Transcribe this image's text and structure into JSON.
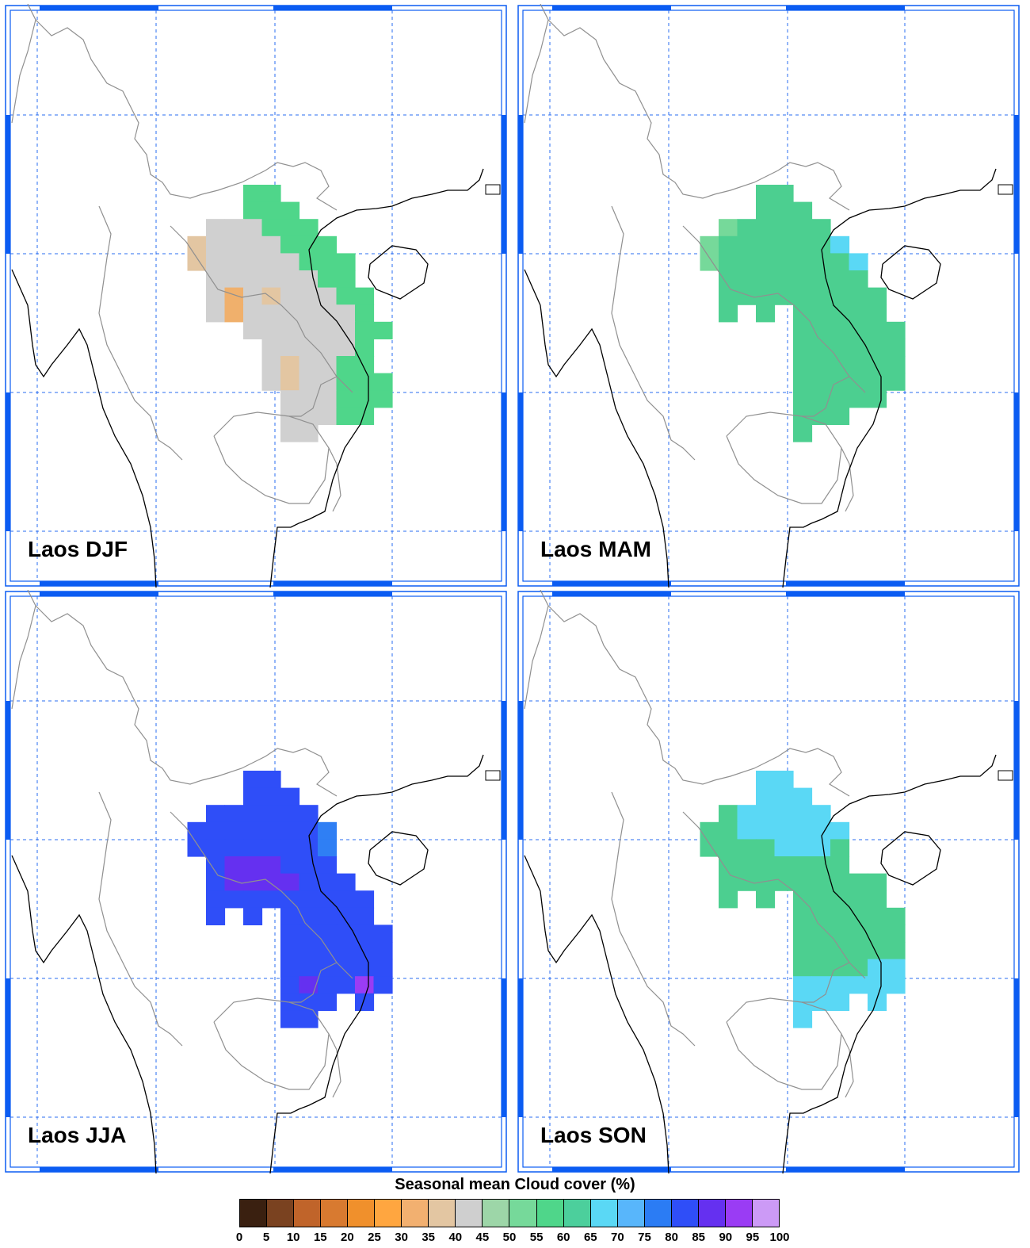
{
  "panels": [
    {
      "label": "Laos DJF",
      "grid": [
        "....GG.....",
        "....GGG....",
        "..XXXGGG...",
        ".TXXXXGGG..",
        ".TXXXXXGGG.",
        "..XXXXXXGG.",
        "..XOXTXXXGG",
        "..XOXXXXXXG",
        "....XXXXXXGG",
        ".....XXXXXG.",
        ".....XTXXGG.",
        ".....XTXXGGG",
        "......XXXGGG",
        "......XXXGG.",
        "......XX...."
      ]
    },
    {
      "label": "Laos MAM",
      "grid": [
        "....MM.....",
        "....MMM....",
        "..LMMMMM...",
        ".LMMMMMMC..",
        ".LMMMMMMMC.",
        "..MMMMMMMM.",
        "..MMMMMMMMM",
        "..M.M.MMMMM",
        "......MMMMMM",
        "......MMMMMM",
        "......MMMMMM",
        "......MMMMMM",
        "......MMMMM.",
        "......MMM...",
        "......M....."
      ]
    },
    {
      "label": "Laos JJA",
      "grid": [
        "....BB.....",
        "....BBB....",
        "..BBBBBB...",
        ".BBBBBBBA..",
        ".BBBBBBBA..",
        "..BPPPBBB..",
        "..BPPPPBBB.",
        "..BBBBBBBBB",
        "..B.B.BBBBB.",
        "......BBBBBB",
        "......BBBBBB",
        "......BBBBBB",
        "......BPBBVB",
        "......BBB.B.",
        "......BB...."
      ]
    },
    {
      "label": "Laos SON",
      "grid": [
        "....CC.....",
        "....CCC....",
        "..MCCCCC...",
        ".MMCCCCCC..",
        ".MMMMCCCM..",
        "..MMMMMMM..",
        "..MMMMMMMMM",
        "..M.M.MMMMM",
        "......MMMMMM",
        "......MMMMMM",
        "......MMMMMM",
        "......MMMMCC",
        "......CCCCCC",
        "......CCC.C.",
        "......C....."
      ]
    }
  ],
  "cell_colors": {
    "G": "#4fd68a",
    "X": "#d0d0d0",
    "T": "#e3c6a2",
    "O": "#f0b06c",
    "M": "#4ccf90",
    "L": "#76d99a",
    "C": "#5ad8f5",
    "B": "#2f4ef8",
    "A": "#2f7ff4",
    "P": "#6530f0",
    "V": "#9a3cf4"
  },
  "colorbar": {
    "title": "Seasonal mean Cloud cover (%)",
    "ticks": [
      "0",
      "5",
      "10",
      "15",
      "20",
      "25",
      "30",
      "35",
      "40",
      "45",
      "50",
      "55",
      "60",
      "65",
      "70",
      "75",
      "80",
      "85",
      "90",
      "95",
      "100"
    ],
    "colors": [
      "#3a2010",
      "#7a4220",
      "#c0642a",
      "#d87a30",
      "#f0902c",
      "#ffa640",
      "#f2b070",
      "#e3c6a2",
      "#cfcfcf",
      "#9dd6a8",
      "#76d99a",
      "#4fd68a",
      "#4ccf9c",
      "#5ad8f5",
      "#58b6fb",
      "#2b7cf4",
      "#2f4ef8",
      "#6530f0",
      "#9a3cf4",
      "#cc9af6"
    ]
  }
}
